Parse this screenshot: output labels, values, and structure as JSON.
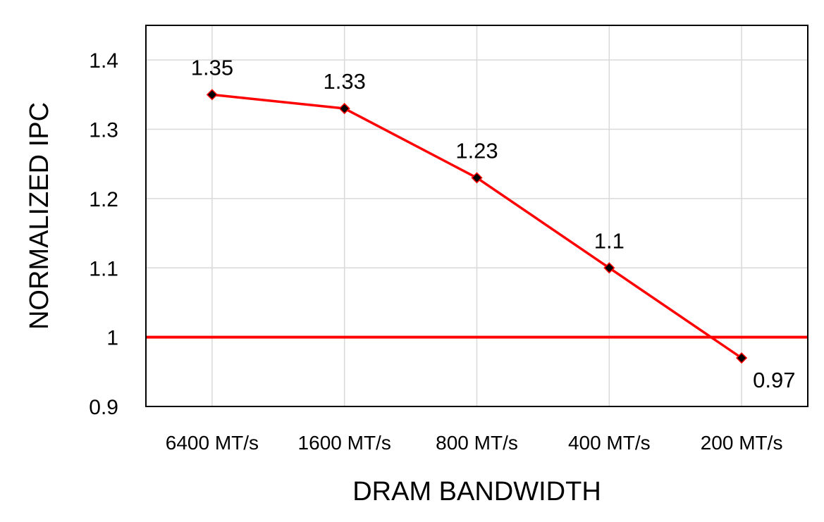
{
  "chart_data": {
    "type": "line",
    "title": "",
    "xlabel": "DRAM BANDWIDTH",
    "ylabel": "NORMALIZED IPC",
    "categories": [
      "6400 MT/s",
      "1600 MT/s",
      "800 MT/s",
      "400 MT/s",
      "200 MT/s"
    ],
    "series": [
      {
        "values": [
          1.35,
          1.33,
          1.23,
          1.1,
          0.97
        ],
        "data_labels": [
          "1.35",
          "1.33",
          "1.23",
          "1.1",
          "0.97"
        ],
        "color": "#ff0000",
        "marker": "diamond",
        "marker_color": "#000000"
      }
    ],
    "yticks": [
      0.9,
      1.0,
      1.1,
      1.2,
      1.3,
      1.4
    ],
    "ytick_labels": [
      "0.9",
      "1",
      "1.1",
      "1.2",
      "1.3",
      "1.4"
    ],
    "ylim": [
      0.9,
      1.45
    ],
    "reference_line": {
      "y": 1.0,
      "color": "#ff0000"
    },
    "grid": true,
    "legend": "none"
  }
}
